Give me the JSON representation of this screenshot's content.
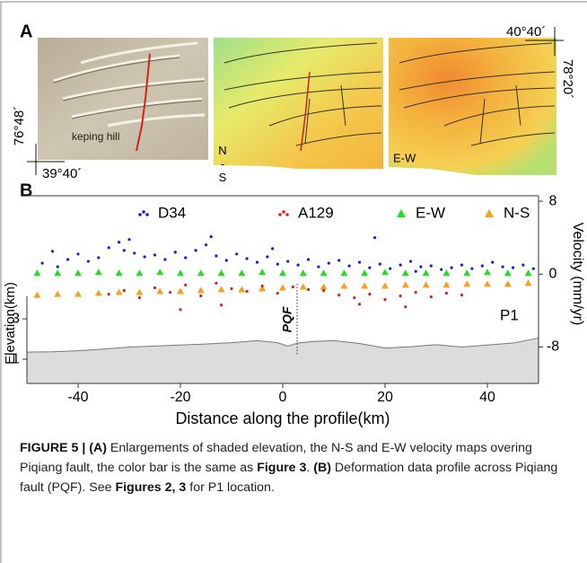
{
  "panel_a": {
    "label": "A",
    "place_label": "keping hill",
    "ns_label": "N-S",
    "ew_label": "E-W",
    "coords": {
      "top_right_lon": "40°40´",
      "top_right_lat": "78°20´",
      "bottom_left_lat": "76°48´",
      "bottom_left_lon": "39°40´"
    }
  },
  "chart_data": {
    "type": "scatter",
    "panel_label": "B",
    "xlabel": "Distance along the profile(km)",
    "ylabel": "Elevation(km)",
    "y2label": "Velocity (mm/yr)",
    "xlim": [
      -50,
      50
    ],
    "xticks": [
      -40,
      -20,
      0,
      20,
      40
    ],
    "ylim": [
      -0.2,
      9.1
    ],
    "yticks": [
      1,
      3
    ],
    "y2lim": [
      -12,
      8.6
    ],
    "y2ticks": [
      8,
      0,
      -8
    ],
    "annotations": [
      "PQF",
      "P1"
    ],
    "series": [
      {
        "name": "D34",
        "color": "#1a1adb",
        "marker": "circle",
        "axis": "y2",
        "x": [
          -47,
          -45,
          -44,
          -42,
          -40,
          -38,
          -36,
          -34,
          -32,
          -31,
          -29,
          -27,
          -25,
          -23,
          -21,
          -19,
          -17,
          -15,
          -13,
          -11,
          -9,
          -7,
          -5,
          -3,
          -1,
          1,
          3,
          5,
          7,
          9,
          11,
          13,
          15,
          17,
          19,
          21,
          23,
          25,
          27,
          29,
          31,
          33,
          35,
          37,
          39,
          41,
          43,
          45,
          47,
          49,
          -30,
          -14,
          -2,
          18,
          26
        ],
        "values": [
          1.2,
          2.5,
          0.8,
          1.6,
          2.2,
          1.4,
          1.8,
          2.9,
          3.5,
          2.6,
          2.3,
          1.9,
          2.1,
          1.6,
          2.4,
          1.8,
          2.6,
          3.2,
          2.0,
          1.5,
          2.2,
          1.7,
          1.3,
          1.9,
          1.1,
          1.4,
          1.0,
          1.6,
          0.8,
          1.2,
          1.5,
          0.9,
          1.3,
          0.7,
          1.1,
          0.6,
          1.0,
          1.4,
          0.8,
          0.9,
          0.5,
          0.7,
          1.0,
          0.6,
          0.9,
          1.3,
          0.8,
          0.7,
          1.0,
          0.6,
          3.8,
          4.1,
          2.8,
          4.0,
          0.3
        ]
      },
      {
        "name": "A129",
        "color": "#d62020",
        "marker": "circle",
        "axis": "y2",
        "x": [
          -34,
          -31,
          -28,
          -25,
          -22,
          -19,
          -16,
          -13,
          -10,
          -7,
          -4,
          -1,
          2,
          5,
          8,
          11,
          14,
          17,
          20,
          23,
          26,
          29,
          32,
          35,
          -20,
          -12,
          15,
          24
        ],
        "values": [
          -2.2,
          -1.8,
          -2.6,
          -1.5,
          -2.0,
          -1.2,
          -2.4,
          -1.0,
          -1.6,
          -1.9,
          -1.3,
          -2.1,
          -1.4,
          -1.7,
          -1.8,
          -2.3,
          -2.6,
          -2.2,
          -2.8,
          -2.4,
          -2.0,
          -2.5,
          -2.1,
          -2.3,
          -3.9,
          -3.4,
          -3.3,
          -3.6
        ]
      },
      {
        "name": "E-W",
        "color": "#22dd22",
        "marker": "triangle",
        "axis": "y2",
        "x": [
          -48,
          -44,
          -40,
          -36,
          -32,
          -28,
          -24,
          -20,
          -16,
          -12,
          -8,
          -4,
          0,
          4,
          8,
          12,
          16,
          20,
          24,
          28,
          32,
          36,
          40,
          44,
          48
        ],
        "values": [
          0.1,
          0.1,
          0.1,
          0.2,
          0.1,
          0.1,
          0.2,
          0.1,
          0.1,
          0.1,
          0.1,
          0.2,
          0.1,
          0.1,
          0.1,
          0.1,
          0.1,
          0.2,
          0.1,
          0.1,
          0.1,
          0.1,
          0.2,
          0.1,
          0.1
        ]
      },
      {
        "name": "N-S",
        "color": "#f5a020",
        "marker": "triangle",
        "axis": "y2",
        "x": [
          -48,
          -44,
          -40,
          -36,
          -32,
          -28,
          -24,
          -20,
          -16,
          -12,
          -8,
          -4,
          0,
          4,
          8,
          12,
          16,
          20,
          24,
          28,
          32,
          36,
          40,
          44,
          48
        ],
        "values": [
          -2.3,
          -2.2,
          -2.2,
          -2.1,
          -2.0,
          -2.0,
          -1.9,
          -1.9,
          -1.8,
          -1.7,
          -1.7,
          -1.6,
          -1.5,
          -1.4,
          -1.4,
          -1.3,
          -1.3,
          -1.3,
          -1.2,
          -1.2,
          -1.2,
          -1.1,
          -1.1,
          -1.1,
          -1.0
        ]
      }
    ],
    "elevation": {
      "color": "#dcdcdc",
      "x": [
        -50,
        -45,
        -40,
        -35,
        -30,
        -25,
        -20,
        -15,
        -10,
        -5,
        -1,
        1,
        3,
        6,
        10,
        15,
        20,
        25,
        30,
        35,
        40,
        45,
        50
      ],
      "values": [
        1.35,
        1.37,
        1.42,
        1.5,
        1.6,
        1.65,
        1.7,
        1.75,
        1.82,
        1.92,
        1.82,
        1.65,
        1.8,
        1.88,
        1.92,
        1.78,
        1.55,
        1.62,
        1.72,
        1.6,
        1.7,
        1.8,
        2.05
      ]
    }
  },
  "caption": {
    "parts": [
      {
        "text": "FIGURE 5 | (A)",
        "bold": true
      },
      {
        "text": " Enlargements of shaded elevation, the N-S and E-W velocity maps overing Piqiang fault, the color bar is the same as ",
        "bold": false
      },
      {
        "text": "Figure 3",
        "bold": true
      },
      {
        "text": ". ",
        "bold": false
      },
      {
        "text": "(B)",
        "bold": true
      },
      {
        "text": " Deformation data profile across Piqiang fault (PQF). See ",
        "bold": false
      },
      {
        "text": "Figures 2, 3",
        "bold": true
      },
      {
        "text": " for P1 location.",
        "bold": false
      }
    ]
  }
}
